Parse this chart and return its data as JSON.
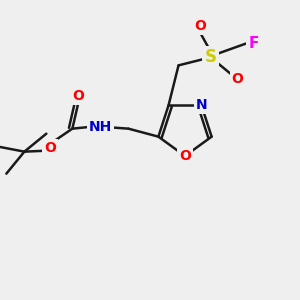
{
  "bg_color": "#efefef",
  "bond_color": "#1a1a1a",
  "atom_colors": {
    "O": "#ff0000",
    "N": "#0000cc",
    "S": "#cccc00",
    "F": "#ff00ff",
    "C": "#1a1a1a"
  },
  "figsize": [
    3.0,
    3.0
  ],
  "dpi": 100
}
